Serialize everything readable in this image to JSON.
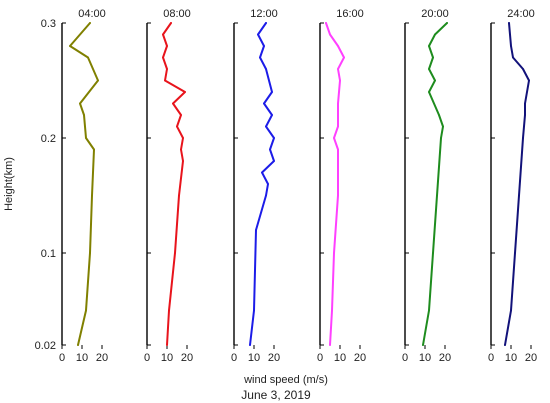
{
  "chart_data": {
    "type": "line",
    "orientation": "vertical-profile",
    "ylabel": "Height(km)",
    "xlabel": "wind speed (m/s)",
    "caption": "June 3, 2019",
    "xlim": [
      0,
      25
    ],
    "ylim": [
      0.02,
      0.3
    ],
    "y_ticks": [
      {
        "value": 0.3,
        "label": "0.3"
      },
      {
        "value": 0.2,
        "label": "0.2"
      },
      {
        "value": 0.1,
        "label": "0.1"
      },
      {
        "value": 0.02,
        "label": "0.02"
      }
    ],
    "x_ticks": [
      {
        "value": 0,
        "label": "0"
      },
      {
        "value": 10,
        "label": "10"
      },
      {
        "value": 20,
        "label": "20"
      }
    ],
    "grid": false,
    "panels": [
      {
        "title": "04:00",
        "color": "#808000",
        "points": [
          {
            "height": 0.3,
            "speed": 14
          },
          {
            "height": 0.28,
            "speed": 4
          },
          {
            "height": 0.27,
            "speed": 13
          },
          {
            "height": 0.25,
            "speed": 18
          },
          {
            "height": 0.23,
            "speed": 9
          },
          {
            "height": 0.22,
            "speed": 11
          },
          {
            "height": 0.2,
            "speed": 12
          },
          {
            "height": 0.19,
            "speed": 16
          },
          {
            "height": 0.15,
            "speed": 15
          },
          {
            "height": 0.1,
            "speed": 14
          },
          {
            "height": 0.05,
            "speed": 12
          },
          {
            "height": 0.02,
            "speed": 8
          }
        ]
      },
      {
        "title": "08:00",
        "color": "#e8141c",
        "points": [
          {
            "height": 0.3,
            "speed": 12
          },
          {
            "height": 0.29,
            "speed": 8
          },
          {
            "height": 0.28,
            "speed": 10
          },
          {
            "height": 0.27,
            "speed": 8
          },
          {
            "height": 0.26,
            "speed": 10
          },
          {
            "height": 0.25,
            "speed": 9
          },
          {
            "height": 0.24,
            "speed": 19
          },
          {
            "height": 0.23,
            "speed": 13
          },
          {
            "height": 0.22,
            "speed": 17
          },
          {
            "height": 0.21,
            "speed": 15
          },
          {
            "height": 0.2,
            "speed": 18
          },
          {
            "height": 0.19,
            "speed": 17
          },
          {
            "height": 0.18,
            "speed": 18
          },
          {
            "height": 0.15,
            "speed": 16
          },
          {
            "height": 0.1,
            "speed": 14
          },
          {
            "height": 0.05,
            "speed": 11
          },
          {
            "height": 0.02,
            "speed": 10
          }
        ]
      },
      {
        "title": "12:00",
        "color": "#1c1ce8",
        "points": [
          {
            "height": 0.3,
            "speed": 16
          },
          {
            "height": 0.29,
            "speed": 12
          },
          {
            "height": 0.28,
            "speed": 15
          },
          {
            "height": 0.27,
            "speed": 13
          },
          {
            "height": 0.26,
            "speed": 16
          },
          {
            "height": 0.24,
            "speed": 19
          },
          {
            "height": 0.23,
            "speed": 15
          },
          {
            "height": 0.22,
            "speed": 19
          },
          {
            "height": 0.21,
            "speed": 16
          },
          {
            "height": 0.2,
            "speed": 20
          },
          {
            "height": 0.19,
            "speed": 18
          },
          {
            "height": 0.18,
            "speed": 20
          },
          {
            "height": 0.17,
            "speed": 14
          },
          {
            "height": 0.16,
            "speed": 17
          },
          {
            "height": 0.15,
            "speed": 16
          },
          {
            "height": 0.12,
            "speed": 11
          },
          {
            "height": 0.05,
            "speed": 10
          },
          {
            "height": 0.02,
            "speed": 8
          }
        ]
      },
      {
        "title": "16:00",
        "color": "#ff40ff",
        "points": [
          {
            "height": 0.3,
            "speed": 3
          },
          {
            "height": 0.29,
            "speed": 5
          },
          {
            "height": 0.28,
            "speed": 9
          },
          {
            "height": 0.27,
            "speed": 12
          },
          {
            "height": 0.26,
            "speed": 9
          },
          {
            "height": 0.25,
            "speed": 10
          },
          {
            "height": 0.23,
            "speed": 9
          },
          {
            "height": 0.21,
            "speed": 9
          },
          {
            "height": 0.2,
            "speed": 7
          },
          {
            "height": 0.19,
            "speed": 9
          },
          {
            "height": 0.15,
            "speed": 9
          },
          {
            "height": 0.1,
            "speed": 7
          },
          {
            "height": 0.05,
            "speed": 6
          },
          {
            "height": 0.02,
            "speed": 5
          }
        ]
      },
      {
        "title": "20:00",
        "color": "#1e8c1e",
        "points": [
          {
            "height": 0.3,
            "speed": 21
          },
          {
            "height": 0.29,
            "speed": 15
          },
          {
            "height": 0.28,
            "speed": 12
          },
          {
            "height": 0.27,
            "speed": 14
          },
          {
            "height": 0.26,
            "speed": 12
          },
          {
            "height": 0.25,
            "speed": 15
          },
          {
            "height": 0.24,
            "speed": 12
          },
          {
            "height": 0.22,
            "speed": 17
          },
          {
            "height": 0.21,
            "speed": 19
          },
          {
            "height": 0.2,
            "speed": 18
          },
          {
            "height": 0.15,
            "speed": 16
          },
          {
            "height": 0.1,
            "speed": 14
          },
          {
            "height": 0.05,
            "speed": 12
          },
          {
            "height": 0.02,
            "speed": 9
          }
        ]
      },
      {
        "title": "24:00",
        "color": "#12127a",
        "points": [
          {
            "height": 0.3,
            "speed": 9
          },
          {
            "height": 0.28,
            "speed": 10
          },
          {
            "height": 0.27,
            "speed": 11
          },
          {
            "height": 0.26,
            "speed": 16
          },
          {
            "height": 0.25,
            "speed": 19
          },
          {
            "height": 0.23,
            "speed": 17
          },
          {
            "height": 0.22,
            "speed": 17
          },
          {
            "height": 0.2,
            "speed": 16
          },
          {
            "height": 0.15,
            "speed": 14
          },
          {
            "height": 0.1,
            "speed": 12
          },
          {
            "height": 0.05,
            "speed": 10
          },
          {
            "height": 0.02,
            "speed": 7
          }
        ]
      }
    ]
  }
}
